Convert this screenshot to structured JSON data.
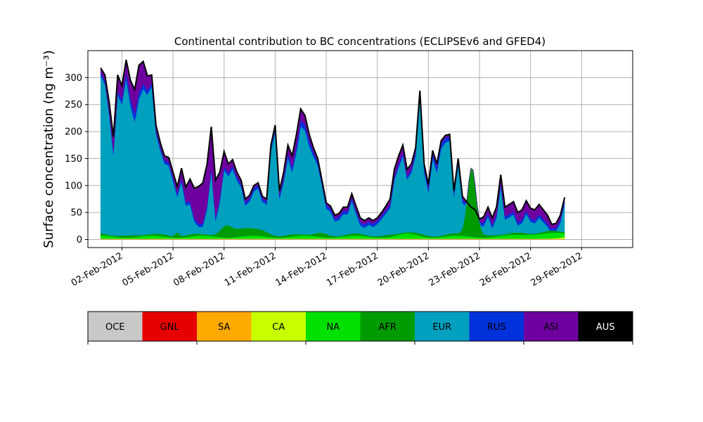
{
  "chart_data": {
    "type": "area",
    "stacked": true,
    "title": "Continental contribution to BC concentrations (ECLIPSEv6 and GFED4)",
    "ylabel": "Surface concentration (ng m⁻³)",
    "xlabel": "",
    "x_start": "2012-01-31T18:00",
    "x_end": "2012-03-02T12:00",
    "x_step_hours": 6,
    "xlim": [
      "2012-01-31",
      "2012-03-03"
    ],
    "ylim": [
      -15,
      350
    ],
    "grid": true,
    "xticks": [
      "02-Feb-2012",
      "05-Feb-2012",
      "08-Feb-2012",
      "11-Feb-2012",
      "14-Feb-2012",
      "17-Feb-2012",
      "20-Feb-2012",
      "23-Feb-2012",
      "26-Feb-2012",
      "29-Feb-2012"
    ],
    "yticks": [
      0,
      50,
      100,
      150,
      200,
      250,
      300
    ],
    "total_key": [
      [
        "2012-01-31T18:00",
        318
      ],
      [
        "2012-02-01T00:00",
        305
      ],
      [
        "2012-02-01T06:00",
        255
      ],
      [
        "2012-02-01T12:00",
        190
      ],
      [
        "2012-02-01T18:00",
        305
      ],
      [
        "2012-02-02T00:00",
        285
      ],
      [
        "2012-02-02T06:00",
        333
      ],
      [
        "2012-02-02T12:00",
        295
      ],
      [
        "2012-02-02T18:00",
        278
      ],
      [
        "2012-02-03T00:00",
        323
      ],
      [
        "2012-02-03T06:00",
        330
      ],
      [
        "2012-02-03T12:00",
        303
      ],
      [
        "2012-02-03T18:00",
        305
      ],
      [
        "2012-02-04T00:00",
        212
      ],
      [
        "2012-02-04T06:00",
        180
      ],
      [
        "2012-02-04T12:00",
        155
      ],
      [
        "2012-02-04T18:00",
        152
      ],
      [
        "2012-02-05T00:00",
        125
      ],
      [
        "2012-02-05T06:00",
        98
      ],
      [
        "2012-02-05T12:00",
        132
      ],
      [
        "2012-02-05T18:00",
        97
      ],
      [
        "2012-02-06T00:00",
        112
      ],
      [
        "2012-02-06T06:00",
        95
      ],
      [
        "2012-02-06T12:00",
        98
      ],
      [
        "2012-02-06T18:00",
        105
      ],
      [
        "2012-02-07T00:00",
        140
      ],
      [
        "2012-02-07T06:00",
        209
      ],
      [
        "2012-02-07T12:00",
        110
      ],
      [
        "2012-02-07T18:00",
        125
      ],
      [
        "2012-02-08T00:00",
        163
      ],
      [
        "2012-02-08T06:00",
        140
      ],
      [
        "2012-02-08T12:00",
        148
      ],
      [
        "2012-02-08T18:00",
        125
      ],
      [
        "2012-02-09T00:00",
        110
      ],
      [
        "2012-02-09T06:00",
        75
      ],
      [
        "2012-02-09T12:00",
        82
      ],
      [
        "2012-02-09T18:00",
        100
      ],
      [
        "2012-02-10T00:00",
        105
      ],
      [
        "2012-02-10T06:00",
        80
      ],
      [
        "2012-02-10T12:00",
        75
      ],
      [
        "2012-02-10T18:00",
        175
      ],
      [
        "2012-02-11T00:00",
        212
      ],
      [
        "2012-02-11T06:00",
        90
      ],
      [
        "2012-02-11T12:00",
        125
      ],
      [
        "2012-02-11T18:00",
        175
      ],
      [
        "2012-02-12T00:00",
        155
      ],
      [
        "2012-02-12T06:00",
        195
      ],
      [
        "2012-02-12T12:00",
        242
      ],
      [
        "2012-02-12T18:00",
        230
      ],
      [
        "2012-02-13T00:00",
        195
      ],
      [
        "2012-02-13T06:00",
        170
      ],
      [
        "2012-02-13T12:00",
        150
      ],
      [
        "2012-02-13T18:00",
        110
      ],
      [
        "2012-02-14T00:00",
        68
      ],
      [
        "2012-02-14T06:00",
        62
      ],
      [
        "2012-02-14T12:00",
        45
      ],
      [
        "2012-02-14T18:00",
        48
      ],
      [
        "2012-02-15T00:00",
        60
      ],
      [
        "2012-02-15T06:00",
        60
      ],
      [
        "2012-02-15T12:00",
        85
      ],
      [
        "2012-02-15T18:00",
        62
      ],
      [
        "2012-02-16T00:00",
        40
      ],
      [
        "2012-02-16T06:00",
        35
      ],
      [
        "2012-02-16T12:00",
        40
      ],
      [
        "2012-02-16T18:00",
        35
      ],
      [
        "2012-02-17T00:00",
        40
      ],
      [
        "2012-02-17T06:00",
        50
      ],
      [
        "2012-02-17T12:00",
        62
      ],
      [
        "2012-02-17T18:00",
        75
      ],
      [
        "2012-02-18T00:00",
        130
      ],
      [
        "2012-02-18T06:00",
        155
      ],
      [
        "2012-02-18T12:00",
        175
      ],
      [
        "2012-02-18T18:00",
        130
      ],
      [
        "2012-02-19T00:00",
        140
      ],
      [
        "2012-02-19T06:00",
        170
      ],
      [
        "2012-02-19T12:00",
        276
      ],
      [
        "2012-02-19T18:00",
        140
      ],
      [
        "2012-02-20T00:00",
        102
      ],
      [
        "2012-02-20T06:00",
        165
      ],
      [
        "2012-02-20T12:00",
        140
      ],
      [
        "2012-02-20T18:00",
        183
      ],
      [
        "2012-02-21T00:00",
        193
      ],
      [
        "2012-02-21T06:00",
        195
      ],
      [
        "2012-02-21T12:00",
        90
      ],
      [
        "2012-02-21T18:00",
        150
      ],
      [
        "2012-02-22T00:00",
        80
      ],
      [
        "2012-02-22T06:00",
        70
      ],
      [
        "2012-02-22T12:00",
        60
      ],
      [
        "2012-02-22T18:00",
        55
      ],
      [
        "2012-02-23T00:00",
        38
      ],
      [
        "2012-02-23T06:00",
        42
      ],
      [
        "2012-02-23T12:00",
        60
      ],
      [
        "2012-02-23T18:00",
        40
      ],
      [
        "2012-02-24T00:00",
        60
      ],
      [
        "2012-02-24T06:00",
        120
      ],
      [
        "2012-02-24T12:00",
        60
      ],
      [
        "2012-02-24T18:00",
        65
      ],
      [
        "2012-02-25T00:00",
        70
      ],
      [
        "2012-02-25T06:00",
        50
      ],
      [
        "2012-02-25T12:00",
        55
      ],
      [
        "2012-02-25T18:00",
        72
      ],
      [
        "2012-02-26T00:00",
        58
      ],
      [
        "2012-02-26T06:00",
        55
      ],
      [
        "2012-02-26T12:00",
        65
      ],
      [
        "2012-02-26T18:00",
        55
      ],
      [
        "2012-02-27T00:00",
        45
      ],
      [
        "2012-02-27T06:00",
        28
      ],
      [
        "2012-02-27T12:00",
        30
      ],
      [
        "2012-02-27T18:00",
        45
      ],
      [
        "2012-02-28T00:00",
        78
      ]
    ],
    "series": [
      {
        "name": "OCE",
        "color": "#c8c8c8"
      },
      {
        "name": "GNL",
        "color": "#e60000"
      },
      {
        "name": "SA",
        "color": "#ffaa00"
      },
      {
        "name": "CA",
        "color": "#c8ff00"
      },
      {
        "name": "NA",
        "color": "#00e100"
      },
      {
        "name": "AFR",
        "color": "#009b00"
      },
      {
        "name": "EUR",
        "color": "#00a0be"
      },
      {
        "name": "RUS",
        "color": "#0032dc"
      },
      {
        "name": "ASI",
        "color": "#6e00a0"
      },
      {
        "name": "AUS",
        "color": "#000000"
      }
    ],
    "components_note": "stack: OCE 0.5, GNL 0.2, SA 0.2, CA 0-8, NA 3-15, AFR 3-130, EUR remainder, RUS 5-15, ASI 5-100"
  }
}
